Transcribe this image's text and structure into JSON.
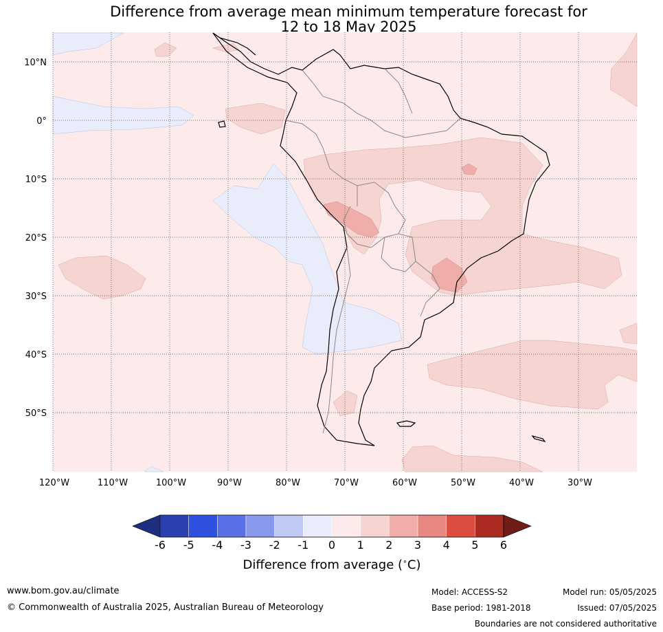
{
  "title": {
    "line1": "Difference from average mean minimum temperature forecast for",
    "line2": "12 to 18 May 2025"
  },
  "map": {
    "region": "South America",
    "lon_range": [
      -120,
      -20
    ],
    "lat_range": [
      -60,
      15
    ],
    "latitude_labels": [
      "10°N",
      "0°",
      "10°S",
      "20°S",
      "30°S",
      "40°S",
      "50°S"
    ],
    "longitude_labels": [
      "120°W",
      "110°W",
      "100°W",
      "90°W",
      "80°W",
      "70°W",
      "60°W",
      "50°W",
      "40°W",
      "30°W"
    ]
  },
  "colorbar": {
    "ticks": [
      "-6",
      "-5",
      "-4",
      "-3",
      "-2",
      "-1",
      "0",
      "1",
      "2",
      "3",
      "4",
      "5",
      "6"
    ],
    "colors": [
      "#1f2f80",
      "#2a40b0",
      "#3050e0",
      "#5a70e6",
      "#8898ed",
      "#c0c8f4",
      "#e8ecfb",
      "#fcebea",
      "#f6d4d2",
      "#efaeaa",
      "#e88880",
      "#db4d40",
      "#ab2b22",
      "#701c18"
    ],
    "label": "Difference from average ($^\\circ$C)"
  },
  "footer": {
    "website": "www.bom.gov.au/climate",
    "copyright": "© Commonwealth of Australia 2025, Australian Bureau of Meteorology",
    "model": "Model: ACCESS-S2",
    "base_period": "Base period: 1981-2018",
    "model_run": "Model run: 05/05/2025",
    "issued": "Issued: 07/05/2025",
    "disclaimer": "Boundaries are not considered authoritative"
  }
}
